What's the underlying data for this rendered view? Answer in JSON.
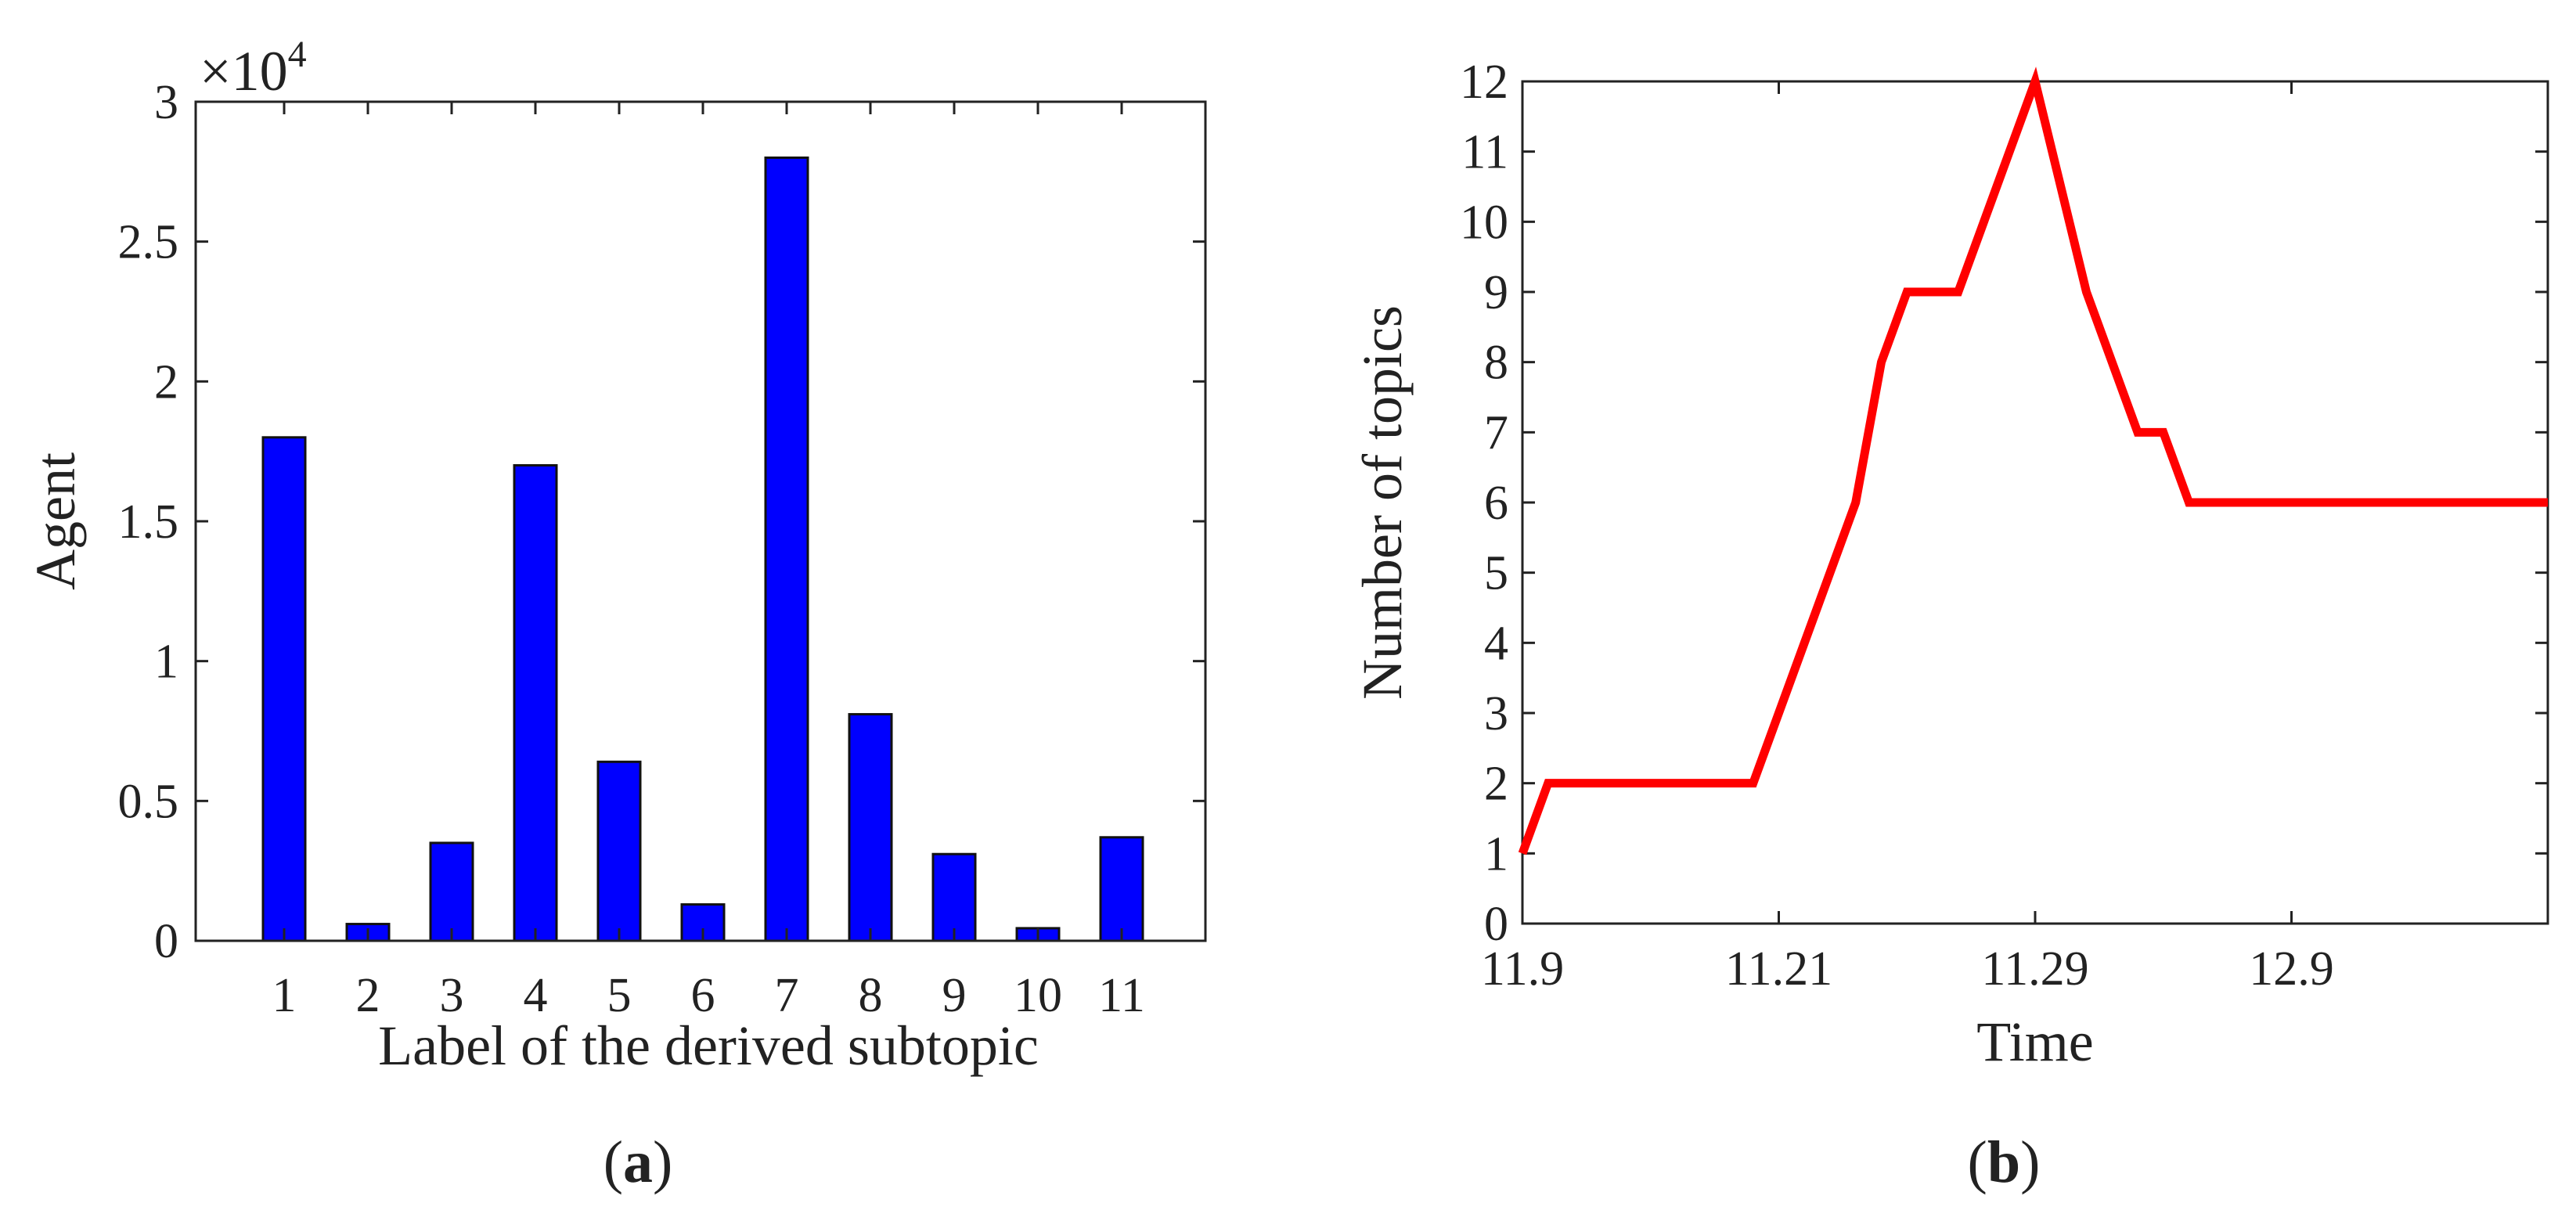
{
  "figures": {
    "a": {
      "caption_letter": "a"
    },
    "b": {
      "caption_letter": "b"
    }
  },
  "colors": {
    "bar_fill": "#0000ff",
    "line": "#ff0000",
    "axis": "#222222"
  },
  "chart_data": [
    {
      "type": "bar",
      "panel": "a",
      "title": "",
      "xlabel": "Label of the derived subtopic",
      "ylabel": "Agent",
      "exponent_label": "×10",
      "exponent_power": "4",
      "categories": [
        "1",
        "2",
        "3",
        "4",
        "5",
        "6",
        "7",
        "8",
        "9",
        "10",
        "11"
      ],
      "values": [
        1.8,
        0.06,
        0.35,
        1.7,
        0.64,
        0.13,
        2.8,
        0.81,
        0.31,
        0.045,
        0.37
      ],
      "ylim": [
        0,
        3
      ],
      "yticks": [
        0,
        0.5,
        1,
        1.5,
        2,
        2.5,
        3
      ],
      "ytick_labels": [
        "0",
        "0.5",
        "1",
        "1.5",
        "2",
        "2.5",
        "3"
      ],
      "grid": false
    },
    {
      "type": "line",
      "panel": "b",
      "title": "",
      "xlabel": "Time",
      "ylabel": "Number of topics",
      "x": [
        0,
        1,
        9,
        13,
        14,
        15,
        17,
        20,
        22,
        24,
        25,
        26,
        27
      ],
      "y": [
        1,
        2,
        2,
        6,
        8,
        9,
        9,
        12,
        9,
        7,
        7,
        6,
        6
      ],
      "xlim": [
        0,
        40
      ],
      "xticks": [
        0,
        10,
        20,
        30
      ],
      "xtick_labels": [
        "11.9",
        "11.21",
        "11.29",
        "12.9"
      ],
      "ylim": [
        0,
        12
      ],
      "yticks": [
        0,
        1,
        2,
        3,
        4,
        5,
        6,
        7,
        8,
        9,
        10,
        11,
        12
      ],
      "ytick_labels": [
        "0",
        "1",
        "2",
        "3",
        "4",
        "5",
        "6",
        "7",
        "8",
        "9",
        "10",
        "11",
        "12"
      ],
      "grid": false
    }
  ]
}
